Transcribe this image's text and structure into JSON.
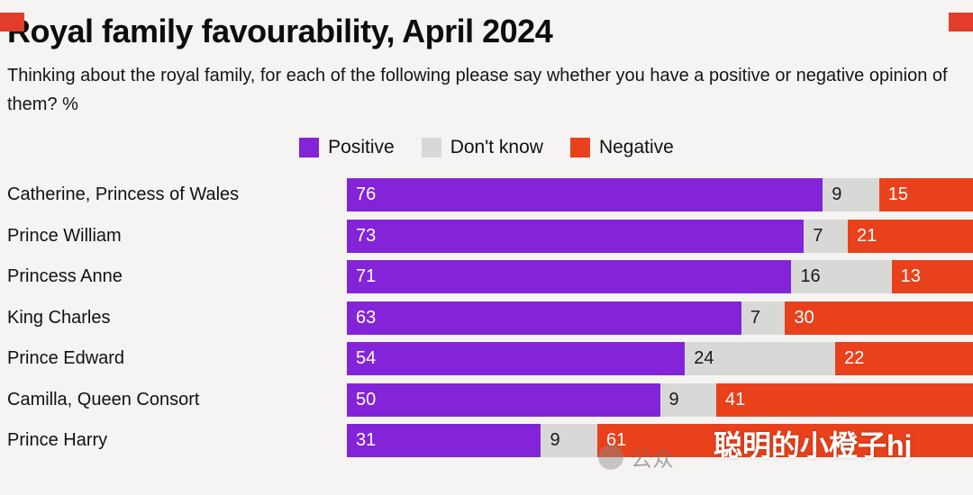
{
  "page": {
    "title": "Royal family favourability, April 2024",
    "subtitle": "Thinking about the royal family, for each of the following please say whether you have a positive or negative opinion of them? %"
  },
  "colors": {
    "positive": "#8424d8",
    "dont_know": "#d8d8d6",
    "negative": "#e8411c",
    "background": "#f5f4f2",
    "corner_mark": "#e23c2a"
  },
  "legend": [
    {
      "label": "Positive",
      "color": "#8424d8",
      "text_color": "#ffffff"
    },
    {
      "label": "Don't know",
      "color": "#d8d8d6",
      "text_color": "#1a1a1a"
    },
    {
      "label": "Negative",
      "color": "#e8411c",
      "text_color": "#ffffff"
    }
  ],
  "watermark": {
    "badge_text": "公众",
    "overlay_text": "聪明的小橙子hj"
  },
  "chart_data": {
    "type": "bar",
    "orientation": "horizontal-stacked",
    "title": "Royal family favourability, April 2024",
    "xlabel": "",
    "ylabel": "",
    "xlim": [
      0,
      100
    ],
    "grid": false,
    "legend_position": "top",
    "categories": [
      "Catherine, Princess of Wales",
      "Prince William",
      "Princess Anne",
      "King Charles",
      "Prince Edward",
      "Camilla, Queen Consort",
      "Prince Harry"
    ],
    "series": [
      {
        "name": "Positive",
        "color": "#8424d8",
        "text_color": "#ffffff",
        "values": [
          76,
          73,
          71,
          63,
          54,
          50,
          31
        ]
      },
      {
        "name": "Don't know",
        "color": "#d8d8d6",
        "text_color": "#1a1a1a",
        "values": [
          9,
          7,
          16,
          7,
          24,
          9,
          9
        ]
      },
      {
        "name": "Negative",
        "color": "#e8411c",
        "text_color": "#ffffff",
        "values": [
          15,
          21,
          13,
          30,
          22,
          41,
          61
        ]
      }
    ]
  }
}
